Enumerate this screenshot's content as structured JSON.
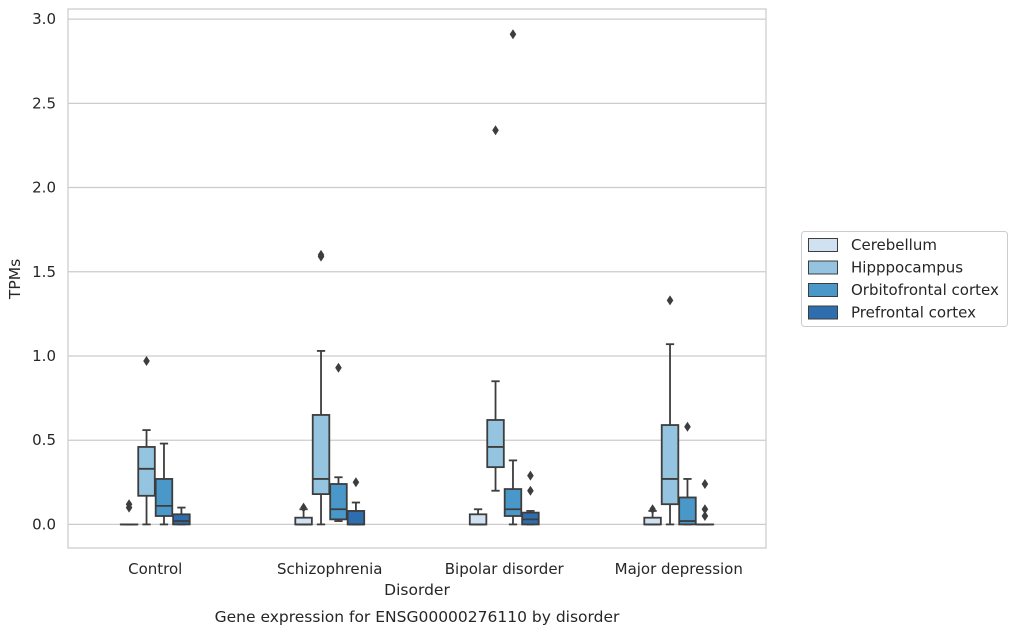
{
  "chart_data": {
    "type": "box",
    "title": "",
    "caption": "Gene expression for ENSG00000276110 by disorder",
    "xlabel": "Disorder",
    "ylabel": "TPMs",
    "ylim": [
      -0.14,
      3.06
    ],
    "yticks": [
      0.0,
      0.5,
      1.0,
      1.5,
      2.0,
      2.5,
      3.0
    ],
    "ytick_labels": [
      "0.0",
      "0.5",
      "1.0",
      "1.5",
      "2.0",
      "2.5",
      "3.0"
    ],
    "grid": "horizontal",
    "legend_position": "right",
    "categories": [
      "Control",
      "Schizophrenia",
      "Bipolar disorder",
      "Major depression"
    ],
    "series": [
      {
        "name": "Cerebellum",
        "color": "#d0e1f2",
        "boxes": [
          {
            "q1": 0.0,
            "median": 0.0,
            "q3": 0.0,
            "whislo": 0.0,
            "whishi": 0.0,
            "fliers": [
              0.1,
              0.12
            ]
          },
          {
            "q1": 0.0,
            "median": 0.0,
            "q3": 0.04,
            "whislo": 0.0,
            "whishi": 0.09,
            "fliers": [
              0.1
            ]
          },
          {
            "q1": 0.0,
            "median": 0.0,
            "q3": 0.06,
            "whislo": 0.0,
            "whishi": 0.09,
            "fliers": []
          },
          {
            "q1": 0.0,
            "median": 0.0,
            "q3": 0.04,
            "whislo": 0.0,
            "whishi": 0.08,
            "fliers": [
              0.09
            ]
          }
        ]
      },
      {
        "name": "Hipppocampus",
        "color": "#94c4df",
        "boxes": [
          {
            "q1": 0.17,
            "median": 0.33,
            "q3": 0.46,
            "whislo": 0.0,
            "whishi": 0.56,
            "fliers": [
              0.97
            ]
          },
          {
            "q1": 0.18,
            "median": 0.27,
            "q3": 0.65,
            "whislo": 0.0,
            "whishi": 1.03,
            "fliers": [
              1.59,
              1.6
            ]
          },
          {
            "q1": 0.34,
            "median": 0.46,
            "q3": 0.62,
            "whislo": 0.2,
            "whishi": 0.85,
            "fliers": [
              2.34
            ]
          },
          {
            "q1": 0.12,
            "median": 0.27,
            "q3": 0.59,
            "whislo": 0.0,
            "whishi": 1.07,
            "fliers": [
              1.33
            ]
          }
        ]
      },
      {
        "name": "Orbitofrontal cortex",
        "color": "#4a98c9",
        "boxes": [
          {
            "q1": 0.05,
            "median": 0.11,
            "q3": 0.27,
            "whislo": 0.0,
            "whishi": 0.48,
            "fliers": []
          },
          {
            "q1": 0.03,
            "median": 0.09,
            "q3": 0.24,
            "whislo": 0.02,
            "whishi": 0.28,
            "fliers": [
              0.93
            ]
          },
          {
            "q1": 0.05,
            "median": 0.09,
            "q3": 0.21,
            "whislo": 0.0,
            "whishi": 0.38,
            "fliers": [
              2.91
            ]
          },
          {
            "q1": 0.0,
            "median": 0.02,
            "q3": 0.16,
            "whislo": 0.0,
            "whishi": 0.27,
            "fliers": [
              0.58
            ]
          }
        ]
      },
      {
        "name": "Prefrontal cortex",
        "color": "#2e6eaf",
        "boxes": [
          {
            "q1": 0.0,
            "median": 0.02,
            "q3": 0.06,
            "whislo": 0.0,
            "whishi": 0.1,
            "fliers": []
          },
          {
            "q1": 0.0,
            "median": 0.0,
            "q3": 0.08,
            "whislo": 0.0,
            "whishi": 0.13,
            "fliers": [
              0.25
            ]
          },
          {
            "q1": 0.0,
            "median": 0.03,
            "q3": 0.07,
            "whislo": 0.0,
            "whishi": 0.08,
            "fliers": [
              0.2,
              0.29
            ]
          },
          {
            "q1": 0.0,
            "median": 0.0,
            "q3": 0.0,
            "whislo": 0.0,
            "whishi": 0.0,
            "fliers": [
              0.05,
              0.09,
              0.24
            ]
          }
        ]
      }
    ]
  }
}
